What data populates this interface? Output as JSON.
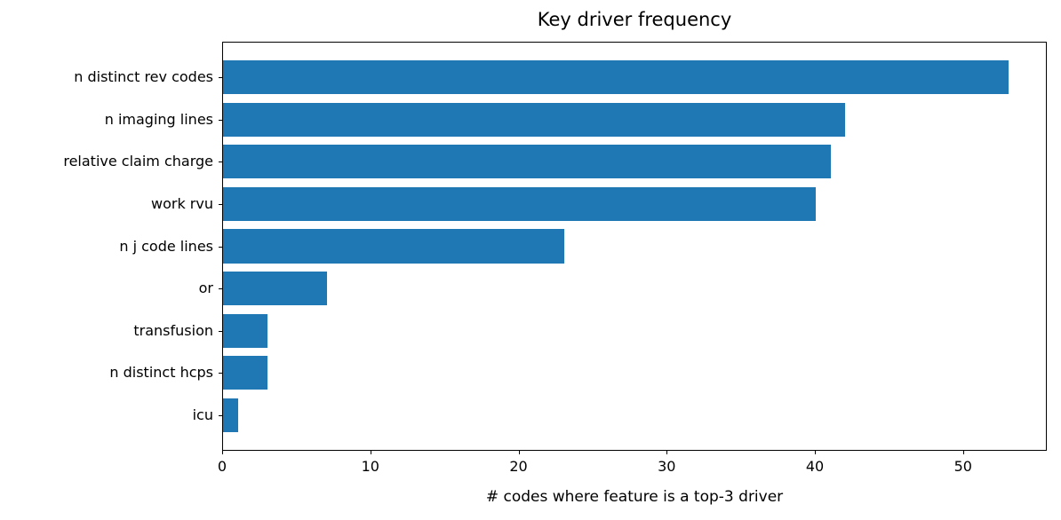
{
  "chart_data": {
    "type": "bar",
    "orientation": "horizontal",
    "title": "Key driver frequency",
    "xlabel": "# codes where feature is a top-3 driver",
    "ylabel": "",
    "categories": [
      "n distinct rev codes",
      "n imaging lines",
      "relative claim charge",
      "work rvu",
      "n j code lines",
      "or",
      "transfusion",
      "n distinct hcps",
      "icu"
    ],
    "values": [
      53,
      42,
      41,
      40,
      23,
      7,
      3,
      3,
      1
    ],
    "xticks": [
      0,
      10,
      20,
      30,
      40,
      50
    ],
    "xlim": [
      0,
      55.65
    ],
    "bar_color": "#1f77b4",
    "axis_color": "#000000",
    "grid": false,
    "legend": null
  }
}
